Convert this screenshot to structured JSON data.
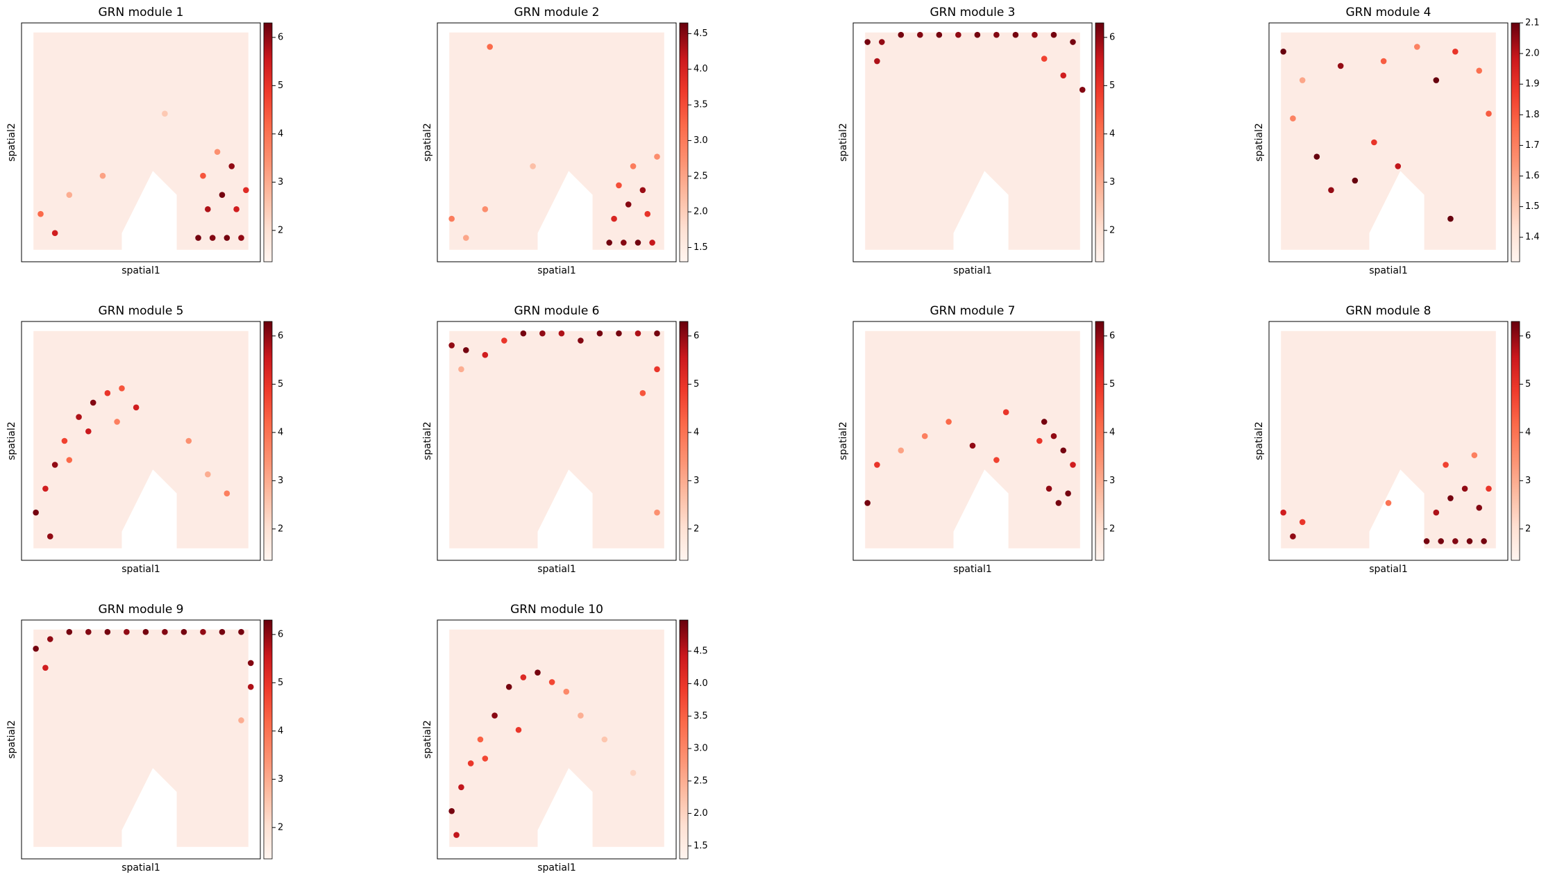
{
  "chart_data": [
    {
      "type": "scatter",
      "title": "GRN module 1",
      "x_label": "spatial1",
      "y_label": "spatial2",
      "xlim": [
        0,
        100
      ],
      "ylim": [
        0,
        100
      ],
      "colormap": "Reds",
      "clim": [
        1.35,
        6.3
      ],
      "colorbar_ticks": [
        2,
        3,
        4,
        5,
        6
      ],
      "x": [
        74,
        80,
        86,
        92,
        78,
        84,
        90,
        76,
        88,
        82,
        94,
        8,
        14,
        20,
        34,
        60
      ],
      "y": [
        10,
        10,
        10,
        10,
        22,
        28,
        22,
        36,
        40,
        46,
        30,
        20,
        12,
        28,
        36,
        62
      ],
      "values": [
        6.2,
        6.1,
        6.2,
        6.0,
        5.8,
        6.2,
        5.5,
        4.5,
        6.0,
        3.5,
        5.2,
        4.2,
        5.5,
        3.0,
        3.2,
        2.5
      ]
    },
    {
      "type": "scatter",
      "title": "GRN module 2",
      "x_label": "spatial1",
      "y_label": "spatial2",
      "xlim": [
        0,
        100
      ],
      "ylim": [
        0,
        100
      ],
      "colormap": "Reds",
      "clim": [
        1.3,
        4.65
      ],
      "colorbar_ticks": [
        1.5,
        {
          "value": 2,
          "label": "2.0"
        },
        2.5,
        {
          "value": 3,
          "label": "3.0"
        },
        3.5,
        {
          "value": 4,
          "label": "4.0"
        },
        4.5
      ],
      "x": [
        72,
        78,
        84,
        90,
        74,
        80,
        88,
        76,
        86,
        82,
        92,
        6,
        12,
        20,
        40,
        22
      ],
      "y": [
        8,
        8,
        8,
        8,
        18,
        24,
        20,
        32,
        30,
        40,
        44,
        18,
        10,
        22,
        40,
        90
      ],
      "values": [
        4.6,
        4.5,
        4.6,
        4.2,
        4.0,
        4.5,
        3.8,
        3.5,
        4.4,
        3.0,
        2.8,
        3.0,
        2.5,
        2.8,
        2.2,
        3.2
      ]
    },
    {
      "type": "scatter",
      "title": "GRN module 3",
      "x_label": "spatial1",
      "y_label": "spatial2",
      "xlim": [
        0,
        100
      ],
      "ylim": [
        0,
        100
      ],
      "colormap": "Reds",
      "clim": [
        1.35,
        6.3
      ],
      "colorbar_ticks": [
        2,
        3,
        4,
        5,
        6
      ],
      "x": [
        6,
        12,
        20,
        28,
        36,
        44,
        52,
        60,
        68,
        76,
        84,
        92,
        96,
        88,
        80,
        10
      ],
      "y": [
        92,
        92,
        95,
        95,
        95,
        95,
        95,
        95,
        95,
        95,
        95,
        92,
        72,
        78,
        85,
        84
      ],
      "values": [
        6.2,
        6.0,
        6.2,
        6.1,
        6.2,
        6.0,
        6.2,
        6.1,
        6.2,
        6.0,
        6.2,
        6.2,
        6.1,
        5.5,
        4.8,
        5.8
      ]
    },
    {
      "type": "scatter",
      "title": "GRN module 4",
      "x_label": "spatial1",
      "y_label": "spatial2",
      "xlim": [
        0,
        100
      ],
      "ylim": [
        0,
        100
      ],
      "colormap": "Reds",
      "clim": [
        1.32,
        2.1
      ],
      "colorbar_ticks": [
        1.4,
        1.5,
        1.6,
        1.7,
        1.8,
        1.9,
        {
          "value": 2,
          "label": "2.0"
        },
        2.1
      ],
      "x": [
        6,
        14,
        30,
        48,
        62,
        70,
        78,
        88,
        92,
        10,
        20,
        26,
        36,
        44,
        54,
        76
      ],
      "y": [
        88,
        76,
        82,
        84,
        90,
        76,
        88,
        80,
        62,
        60,
        44,
        30,
        34,
        50,
        40,
        18
      ],
      "values": [
        2.1,
        1.6,
        2.05,
        1.8,
        1.7,
        2.1,
        1.9,
        1.75,
        1.8,
        1.7,
        2.1,
        2.05,
        2.1,
        1.9,
        2.0,
        2.1
      ]
    },
    {
      "type": "scatter",
      "title": "GRN module 5",
      "x_label": "spatial1",
      "y_label": "spatial2",
      "xlim": [
        0,
        100
      ],
      "ylim": [
        0,
        100
      ],
      "colormap": "Reds",
      "clim": [
        1.35,
        6.3
      ],
      "colorbar_ticks": [
        2,
        3,
        4,
        5,
        6
      ],
      "x": [
        6,
        10,
        14,
        18,
        24,
        30,
        36,
        42,
        48,
        12,
        20,
        28,
        40,
        70,
        78,
        86
      ],
      "y": [
        20,
        30,
        40,
        50,
        60,
        66,
        70,
        72,
        64,
        10,
        42,
        54,
        58,
        50,
        36,
        28
      ],
      "values": [
        6.2,
        5.5,
        6.0,
        4.8,
        5.8,
        6.1,
        5.0,
        4.5,
        5.5,
        6.0,
        4.2,
        5.6,
        3.8,
        3.5,
        3.0,
        3.8
      ]
    },
    {
      "type": "scatter",
      "title": "GRN module 6",
      "x_label": "spatial1",
      "y_label": "spatial2",
      "xlim": [
        0,
        100
      ],
      "ylim": [
        0,
        100
      ],
      "colormap": "Reds",
      "clim": [
        1.35,
        6.3
      ],
      "colorbar_ticks": [
        2,
        3,
        4,
        5,
        6
      ],
      "x": [
        6,
        12,
        20,
        28,
        36,
        44,
        52,
        60,
        68,
        76,
        84,
        92,
        92,
        86,
        10,
        92
      ],
      "y": [
        90,
        88,
        86,
        92,
        95,
        95,
        95,
        92,
        95,
        95,
        95,
        95,
        80,
        70,
        80,
        20
      ],
      "values": [
        6.0,
        6.2,
        5.5,
        5.0,
        6.2,
        6.0,
        5.8,
        6.1,
        6.2,
        6.2,
        5.8,
        6.2,
        5.0,
        4.5,
        3.0,
        3.5
      ]
    },
    {
      "type": "scatter",
      "title": "GRN module 7",
      "x_label": "spatial1",
      "y_label": "spatial2",
      "xlim": [
        0,
        100
      ],
      "ylim": [
        0,
        100
      ],
      "colormap": "Reds",
      "clim": [
        1.35,
        6.3
      ],
      "colorbar_ticks": [
        2,
        3,
        4,
        5,
        6
      ],
      "x": [
        80,
        84,
        88,
        92,
        82,
        90,
        86,
        78,
        60,
        50,
        40,
        30,
        20,
        10,
        6,
        64
      ],
      "y": [
        58,
        52,
        46,
        40,
        30,
        28,
        24,
        50,
        42,
        48,
        58,
        52,
        46,
        40,
        24,
        62
      ],
      "values": [
        6.2,
        6.0,
        6.2,
        5.5,
        6.0,
        6.2,
        6.2,
        5.0,
        4.8,
        6.0,
        4.2,
        3.8,
        3.2,
        5.0,
        6.2,
        5.0
      ]
    },
    {
      "type": "scatter",
      "title": "GRN module 8",
      "x_label": "spatial1",
      "y_label": "spatial2",
      "xlim": [
        0,
        100
      ],
      "ylim": [
        0,
        100
      ],
      "colormap": "Reds",
      "clim": [
        1.35,
        6.3
      ],
      "colorbar_ticks": [
        2,
        3,
        4,
        5,
        6
      ],
      "x": [
        66,
        72,
        78,
        84,
        90,
        70,
        76,
        82,
        88,
        92,
        74,
        86,
        6,
        10,
        14,
        50
      ],
      "y": [
        8,
        8,
        8,
        8,
        8,
        20,
        26,
        30,
        22,
        30,
        40,
        44,
        20,
        10,
        16,
        24
      ],
      "values": [
        6.2,
        6.2,
        6.1,
        6.2,
        6.2,
        5.8,
        6.2,
        6.0,
        6.1,
        5.0,
        4.8,
        3.8,
        5.5,
        6.0,
        5.0,
        4.0
      ]
    },
    {
      "type": "scatter",
      "title": "GRN module 9",
      "x_label": "spatial1",
      "y_label": "spatial2",
      "xlim": [
        0,
        100
      ],
      "ylim": [
        0,
        100
      ],
      "colormap": "Reds",
      "clim": [
        1.35,
        6.3
      ],
      "colorbar_ticks": [
        2,
        3,
        4,
        5,
        6
      ],
      "x": [
        6,
        12,
        20,
        28,
        36,
        44,
        52,
        60,
        68,
        76,
        84,
        92,
        96,
        96,
        10,
        92
      ],
      "y": [
        88,
        92,
        95,
        95,
        95,
        95,
        95,
        95,
        95,
        95,
        95,
        95,
        82,
        72,
        80,
        58
      ],
      "values": [
        6.2,
        6.0,
        6.2,
        6.1,
        6.2,
        6.0,
        6.2,
        6.1,
        6.2,
        6.0,
        6.2,
        6.2,
        6.1,
        5.8,
        5.5,
        3.0
      ]
    },
    {
      "type": "scatter",
      "title": "GRN module 10",
      "x_label": "spatial1",
      "y_label": "spatial2",
      "xlim": [
        0,
        100
      ],
      "ylim": [
        0,
        100
      ],
      "colormap": "Reds",
      "clim": [
        1.3,
        4.98
      ],
      "colorbar_ticks": [
        1.5,
        {
          "value": 2,
          "label": "2.0"
        },
        2.5,
        {
          "value": 3,
          "label": "3.0"
        },
        3.5,
        {
          "value": 4,
          "label": "4.0"
        },
        4.5
      ],
      "x": [
        6,
        10,
        14,
        18,
        24,
        30,
        36,
        42,
        48,
        54,
        60,
        8,
        20,
        34,
        70,
        82
      ],
      "y": [
        20,
        30,
        40,
        50,
        60,
        72,
        76,
        78,
        74,
        70,
        60,
        10,
        42,
        54,
        50,
        36
      ],
      "values": [
        4.9,
        4.5,
        4.0,
        3.5,
        4.8,
        4.9,
        4.2,
        4.9,
        3.8,
        3.0,
        2.5,
        4.5,
        3.8,
        4.0,
        2.2,
        2.0
      ]
    }
  ]
}
